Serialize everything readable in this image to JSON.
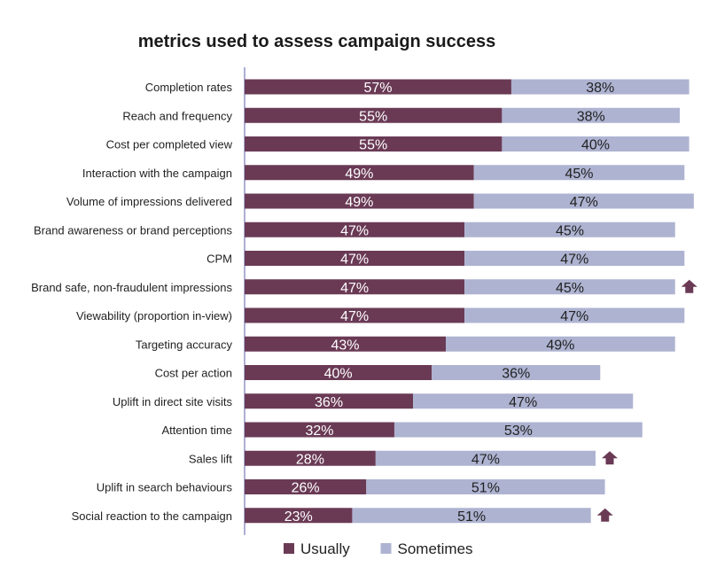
{
  "chart_data": {
    "type": "bar",
    "orientation": "horizontal",
    "stacked": true,
    "title": "metrics used to assess campaign success",
    "xlim": [
      0,
      100
    ],
    "grid": false,
    "legend_position": "bottom",
    "categories": [
      "Completion rates",
      "Reach and frequency",
      "Cost per completed view",
      "Interaction with the campaign",
      "Volume of impressions delivered",
      "Brand awareness or brand perceptions",
      "CPM",
      "Brand safe, non-fraudulent impressions",
      "Viewability (proportion in-view)",
      "Targeting accuracy",
      "Cost per action",
      "Uplift in direct site visits",
      "Attention time",
      "Sales lift",
      "Uplift in search behaviours",
      "Social reaction to the campaign"
    ],
    "series": [
      {
        "name": "Usually",
        "color": "#6a3a55",
        "label_color": "#ffffff",
        "values": [
          57,
          55,
          55,
          49,
          49,
          47,
          47,
          47,
          47,
          43,
          40,
          36,
          32,
          28,
          26,
          23
        ],
        "labels": [
          "57%",
          "55%",
          "55%",
          "49%",
          "49%",
          "47%",
          "47%",
          "47%",
          "47%",
          "43%",
          "40%",
          "36%",
          "32%",
          "28%",
          "26%",
          "23%"
        ]
      },
      {
        "name": "Sometimes",
        "color": "#aeb3d1",
        "label_color": "#222222",
        "values": [
          38,
          38,
          40,
          45,
          47,
          45,
          47,
          45,
          47,
          49,
          36,
          47,
          53,
          47,
          51,
          51
        ],
        "labels": [
          "38%",
          "38%",
          "40%",
          "45%",
          "47%",
          "45%",
          "47%",
          "45%",
          "47%",
          "49%",
          "36%",
          "47%",
          "53%",
          "47%",
          "51%",
          "51%"
        ]
      }
    ],
    "annotations": [
      {
        "category": "Brand safe, non-fraudulent impressions",
        "icon": "up-arrow-icon"
      },
      {
        "category": "Sales lift",
        "icon": "up-arrow-icon"
      },
      {
        "category": "Social reaction to the campaign",
        "icon": "up-arrow-icon"
      }
    ],
    "annotation_color": "#6a3a55",
    "axis_color": "#5b5fa8"
  }
}
